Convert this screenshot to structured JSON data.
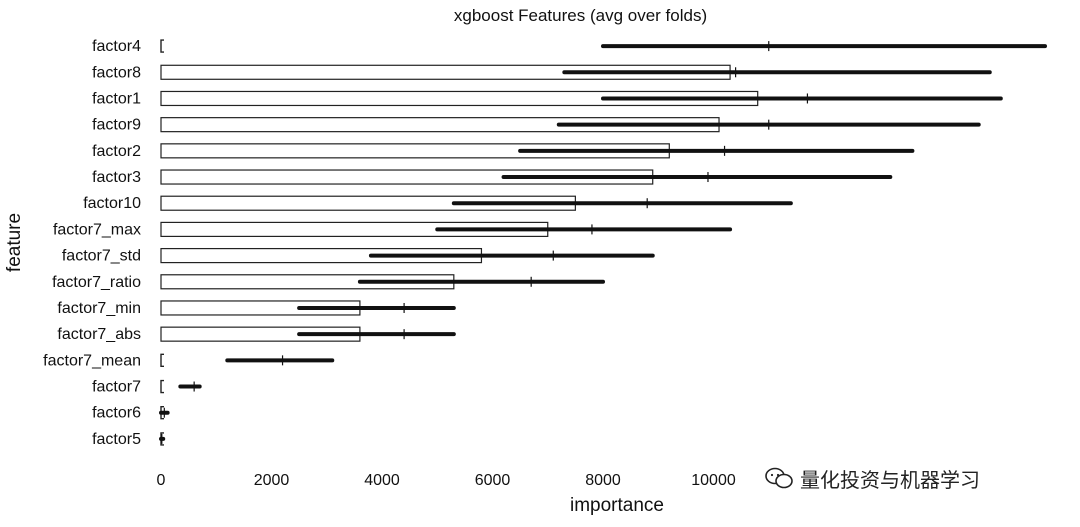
{
  "chart_data": {
    "type": "bar",
    "title": "xgboost Features (avg over folds)",
    "xlabel": "importance",
    "ylabel": "feature",
    "xlim": [
      0,
      16000
    ],
    "xticks": [
      0,
      2000,
      4000,
      6000,
      8000,
      10000
    ],
    "grid": false,
    "categories": [
      "factor4",
      "factor8",
      "factor1",
      "factor9",
      "factor2",
      "factor3",
      "factor10",
      "factor7_max",
      "factor7_std",
      "factor7_ratio",
      "factor7_min",
      "factor7_abs",
      "factor7_mean",
      "factor7",
      "factor6",
      "factor5"
    ],
    "series": [
      {
        "values": [
          0,
          10300,
          10800,
          10100,
          9200,
          8900,
          7500,
          7000,
          5800,
          5300,
          3600,
          3600,
          0,
          0,
          0,
          0
        ],
        "style": "hollow-bar"
      },
      {
        "values": [
          11000,
          10400,
          11700,
          11000,
          10200,
          9900,
          8800,
          7800,
          7100,
          6700,
          4400,
          4400,
          2200,
          600,
          60,
          15
        ],
        "error": [
          [
            8000,
            16000
          ],
          [
            7300,
            15000
          ],
          [
            8000,
            15200
          ],
          [
            7200,
            14800
          ],
          [
            6500,
            13600
          ],
          [
            6200,
            13200
          ],
          [
            5300,
            11400
          ],
          [
            5000,
            10300
          ],
          [
            3800,
            8900
          ],
          [
            3600,
            8000
          ],
          [
            2500,
            5300
          ],
          [
            2500,
            5300
          ],
          [
            1200,
            3100
          ],
          [
            350,
            700
          ],
          [
            0,
            120
          ],
          [
            0,
            40
          ]
        ],
        "style": "error-line"
      }
    ],
    "colors": {
      "line": "#111111",
      "bar_edge": "#222222"
    }
  },
  "watermark": {
    "text": "量化投资与机器学习"
  }
}
